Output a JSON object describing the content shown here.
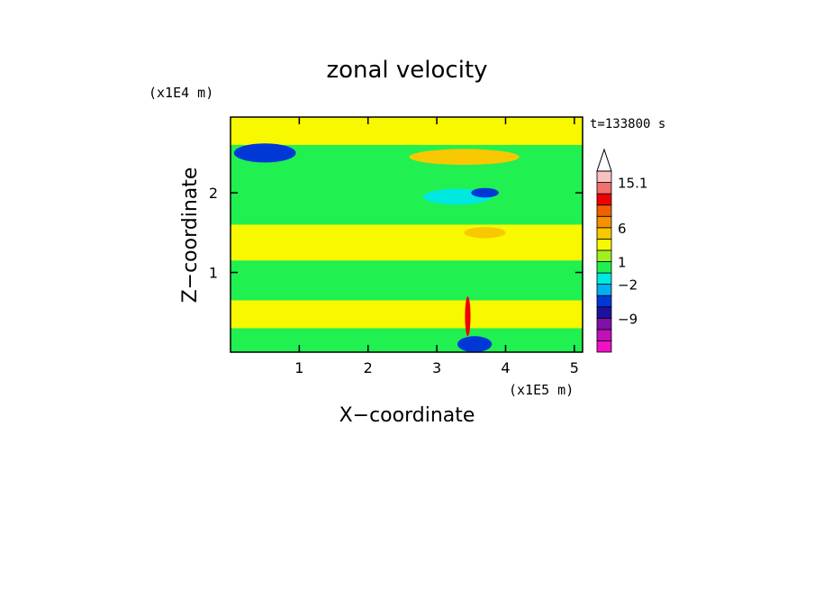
{
  "chart_data": {
    "type": "heatmap",
    "title": "zonal velocity",
    "xlabel": "X−coordinate",
    "ylabel": "Z−coordinate",
    "x_scale_label": "(x1E5 m)",
    "y_scale_label": "(x1E4 m)",
    "time_label": "t=133800 s",
    "xlim": [
      0,
      5.12
    ],
    "ylim": [
      0,
      2.95
    ],
    "x_ticks": [
      "1",
      "2",
      "3",
      "4",
      "5"
    ],
    "y_ticks": [
      "1",
      "2"
    ],
    "colorbar": {
      "levels": [
        {
          "color": "#f010c8"
        },
        {
          "color": "#c010b8"
        },
        {
          "color": "#8010a8"
        },
        {
          "color": "#2010a0"
        },
        {
          "color": "#0038d8"
        },
        {
          "color": "#00b0f0"
        },
        {
          "color": "#00e8e0"
        },
        {
          "color": "#20f050"
        },
        {
          "color": "#a0f020"
        },
        {
          "color": "#f8f800"
        },
        {
          "color": "#f8c800"
        },
        {
          "color": "#f89000"
        },
        {
          "color": "#f06000"
        },
        {
          "color": "#f00000"
        },
        {
          "color": "#f07070"
        },
        {
          "color": "#f8c0c0"
        }
      ],
      "tick_labels": [
        "−9",
        "−2",
        "1",
        "6",
        "15.1"
      ],
      "extend": "max"
    },
    "field": {
      "background_class": "green",
      "bands": [
        {
          "name": "top",
          "class": "yellow",
          "z0": 2.6,
          "z1": 2.95
        },
        {
          "name": "mid",
          "class": "yellow",
          "z0": 1.15,
          "z1": 1.6
        },
        {
          "name": "low",
          "class": "yellow",
          "z0": 0.3,
          "z1": 0.65
        }
      ],
      "features": [
        {
          "class": "blue",
          "x": 0.5,
          "z": 2.5,
          "rx": 0.45,
          "rz": 0.12
        },
        {
          "class": "orange",
          "x": 3.4,
          "z": 2.45,
          "rx": 0.8,
          "rz": 0.1
        },
        {
          "class": "cyan",
          "x": 3.3,
          "z": 1.95,
          "rx": 0.5,
          "rz": 0.1
        },
        {
          "class": "blue",
          "x": 3.7,
          "z": 2.0,
          "rx": 0.2,
          "rz": 0.06
        },
        {
          "class": "orange",
          "x": 3.7,
          "z": 1.5,
          "rx": 0.3,
          "rz": 0.07
        },
        {
          "class": "red",
          "x": 3.45,
          "z": 0.45,
          "rx": 0.04,
          "rz": 0.25
        },
        {
          "class": "blue",
          "x": 3.55,
          "z": 0.1,
          "rx": 0.25,
          "rz": 0.1
        }
      ]
    }
  }
}
